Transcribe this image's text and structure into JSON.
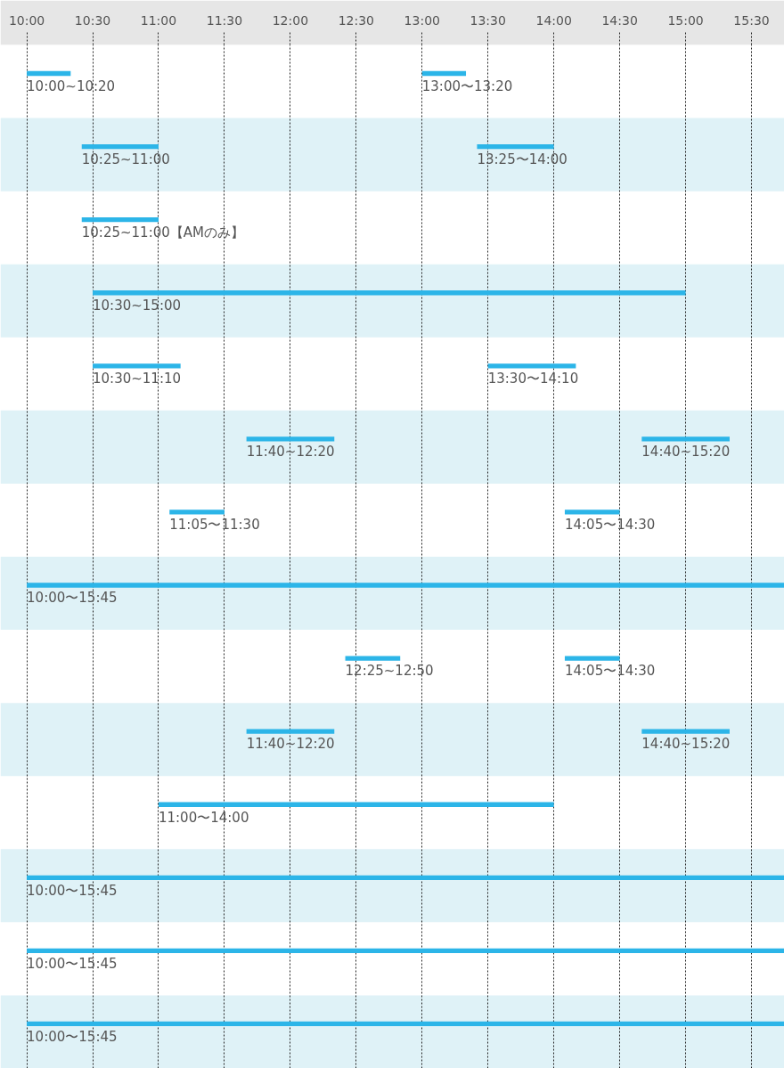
{
  "chart_data": {
    "type": "bar",
    "orientation": "horizontal",
    "categories": [
      null,
      null,
      null,
      null,
      null,
      null,
      null,
      null,
      null,
      null,
      null,
      null,
      null,
      null
    ],
    "tick_labels": "x",
    "xlim": [
      9.8,
      15.75
    ],
    "xticks": [
      {
        "value": 10,
        "label": "10:00"
      },
      {
        "value": 10.5,
        "label": "10:30"
      },
      {
        "value": 11,
        "label": "11:00"
      },
      {
        "value": 11.5,
        "label": "11:30"
      },
      {
        "value": 12,
        "label": "12:00"
      },
      {
        "value": 12.5,
        "label": "12:30"
      },
      {
        "value": 13,
        "label": "13:00"
      },
      {
        "value": 13.5,
        "label": "13:30"
      },
      {
        "value": 14,
        "label": "14:00"
      },
      {
        "value": 14.5,
        "label": "14:30"
      },
      {
        "value": 15,
        "label": "15:00"
      },
      {
        "value": 15.5,
        "label": "15:30"
      }
    ],
    "grid": "x",
    "series": [
      {
        "color": "#2cb5e8",
        "base": [
          10,
          10.417,
          10.417,
          10.5,
          10.5,
          11.667,
          11.083,
          10,
          12.417,
          11.667,
          11,
          10,
          10,
          10
        ],
        "values": [
          0.333,
          0.583,
          0.583,
          4.5,
          0.667,
          0.667,
          0.417,
          5.75,
          0.417,
          0.667,
          3,
          5.75,
          5.75,
          5.75
        ],
        "value_labels": [
          "10:00~10:20",
          "10:25~11:00",
          "10:25~11:00【AMのみ】",
          "10:30~15:00",
          "10:30~11:10",
          "11:40~12:20",
          "11:05〜11:30",
          "10:00〜15:45",
          "12:25~12:50",
          "11:40~12:20",
          "11:00〜14:00",
          "10:00〜15:45",
          "10:00〜15:45",
          "10:00〜15:45"
        ]
      },
      {
        "color": "#2cb5e8",
        "base": [
          13,
          13.417,
          null,
          null,
          13.5,
          14.667,
          14.083,
          null,
          14.083,
          14.667,
          null,
          null,
          null,
          null
        ],
        "values": [
          0.333,
          0.583,
          null,
          null,
          0.667,
          0.667,
          0.417,
          null,
          0.417,
          0.667,
          null,
          null,
          null,
          null
        ],
        "value_labels": [
          "13:00〜13:20",
          "13:25〜14:00",
          null,
          null,
          "13:30〜14:10",
          "14:40~15:20",
          "14:05〜14:30",
          null,
          "14:05〜14:30",
          "14:40~15:20",
          null,
          null,
          null,
          null
        ]
      }
    ]
  }
}
